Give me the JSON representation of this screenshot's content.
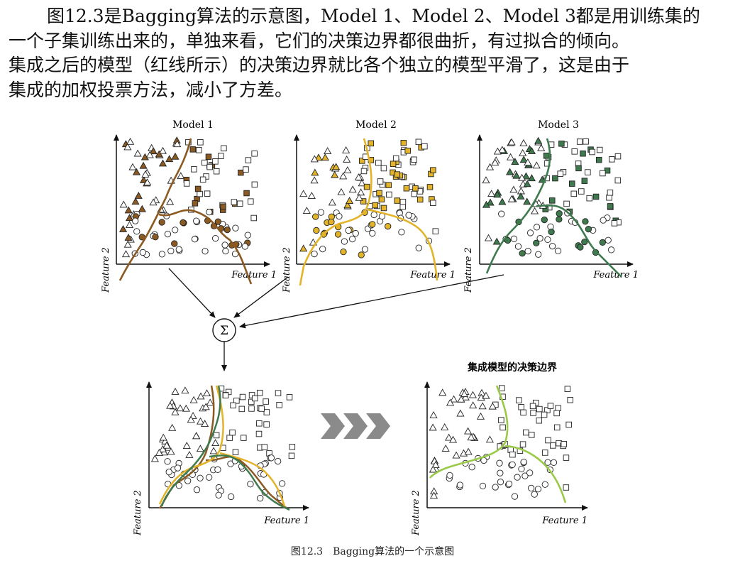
{
  "paragraph": {
    "lines": [
      "图12.3是Bagging算法的示意图，Model 1、Model 2、Model 3都是用训练集的",
      "一个子集训练出来的，单独来看，它们的决策边界都很曲折，有过拟合的倾向。",
      "集成之后的模型（红线所示）的决策边界就比各个独立的模型平滑了，这是由于",
      "集成的加权投票方法，减小了方差。"
    ]
  },
  "figure": {
    "panels": [
      {
        "title": "Model 1",
        "xlabel": "Feature 1",
        "ylabel": "Feature 2",
        "color": "#8a5a22"
      },
      {
        "title": "Model 2",
        "xlabel": "Feature 1",
        "ylabel": "Feature 2",
        "color": "#e3b32a"
      },
      {
        "title": "Model 3",
        "xlabel": "Feature 1",
        "ylabel": "Feature 2",
        "color": "#3f7a4e"
      },
      {
        "title": "",
        "xlabel": "Feature 1",
        "ylabel": "Feature 2",
        "color": "#888888"
      },
      {
        "title": "集成模型的决策边界",
        "xlabel": "Feature 1",
        "ylabel": "Feature 2",
        "color": "#9ac948"
      }
    ],
    "sum_symbol": "Σ",
    "arrow_color": "#a0a0a0"
  },
  "caption": "图12.3　Bagging算法的一个示意图"
}
